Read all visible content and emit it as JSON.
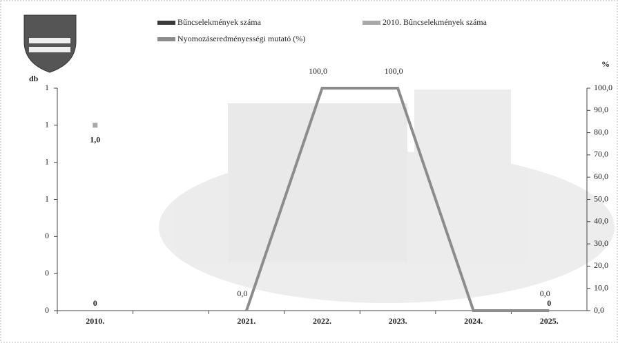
{
  "chart_data": {
    "type": "combo",
    "y_label": "db",
    "y2_label": "%",
    "categories": [
      "2010.",
      null,
      "2021.",
      "2022.",
      "2023.",
      "2024.",
      "2025."
    ],
    "series": [
      {
        "name": "Bűncselekmények száma",
        "type": "bar",
        "color": "#3a3a3a",
        "values": [
          0,
          null,
          null,
          null,
          null,
          null,
          0
        ]
      },
      {
        "name": "2010. Bűncselekmények száma",
        "type": "point",
        "color": "#a8a8a8",
        "values": [
          1.0,
          null,
          null,
          null,
          null,
          null,
          null
        ],
        "value_labels": [
          "1,0",
          null,
          null,
          null,
          null,
          null,
          null
        ]
      },
      {
        "name": "Nyomozáseredményességi mutató (%)",
        "type": "line",
        "axis": "y2",
        "color": "#8c8c8c",
        "values": [
          null,
          null,
          0.0,
          100.0,
          100.0,
          0.0,
          0.0
        ],
        "value_labels": [
          null,
          null,
          "0,0",
          "100,0",
          "100,0",
          null,
          "0,0"
        ]
      }
    ],
    "ylim": [
      0,
      1.2
    ],
    "yticks": [
      0,
      {
        "value": 0.2,
        "label": "0"
      },
      {
        "value": 0.4,
        "label": "0"
      },
      {
        "value": 0.6,
        "label": "1"
      },
      {
        "value": 0.8,
        "label": "1"
      },
      {
        "value": 1.0,
        "label": "1"
      },
      {
        "value": 1.2,
        "label": "1"
      }
    ],
    "y2lim": [
      0,
      100
    ],
    "y2ticks": [
      {
        "value": 0,
        "label": "0,0"
      },
      {
        "value": 10,
        "label": "10,0"
      },
      {
        "value": 20,
        "label": "20,0"
      },
      {
        "value": 30,
        "label": "30,0"
      },
      {
        "value": 40,
        "label": "40,0"
      },
      {
        "value": 50,
        "label": "50,0"
      },
      {
        "value": 60,
        "label": "60,0"
      },
      {
        "value": 70,
        "label": "70,0"
      },
      {
        "value": 80,
        "label": "80,0"
      },
      {
        "value": 90,
        "label": "90,0"
      },
      {
        "value": 100,
        "label": "100,0"
      }
    ],
    "legend": "top"
  }
}
